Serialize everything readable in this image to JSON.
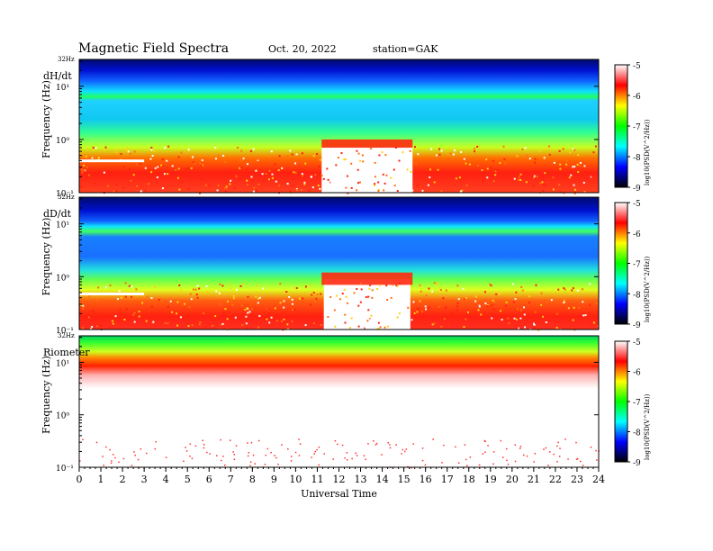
{
  "header": {
    "title": "Magnetic Field Spectra",
    "date": "Oct. 20, 2022",
    "station": "station=GAK"
  },
  "chart_data": [
    {
      "type": "heatmap",
      "label": "dH/dt",
      "ylabel": "Frequency (Hz)",
      "top_tick": "32Hz",
      "yticks": [
        "10¹",
        "10⁰",
        "10⁻¹"
      ],
      "ylim": [
        0.1,
        32
      ],
      "yscale": "log",
      "xlim": [
        0,
        24
      ],
      "colorbar": {
        "label": "log10(PSD(V^2/Hz))",
        "ticks": [
          "-5",
          "-6",
          "-7",
          "-8",
          "-9"
        ],
        "range": [
          -9,
          -5
        ]
      }
    },
    {
      "type": "heatmap",
      "label": "dD/dt",
      "ylabel": "Frequency (Hz)",
      "top_tick": "32Hz",
      "yticks": [
        "10¹",
        "10⁰",
        "10⁻¹"
      ],
      "ylim": [
        0.1,
        32
      ],
      "yscale": "log",
      "xlim": [
        0,
        24
      ],
      "colorbar": {
        "label": "log10(PSD(V^2/Hz))",
        "ticks": [
          "-5",
          "-6",
          "-7",
          "-8",
          "-9"
        ],
        "range": [
          -9,
          -5
        ]
      }
    },
    {
      "type": "heatmap",
      "label": "Riometer",
      "ylabel": "Frequency (Hz)",
      "top_tick": "32Hz",
      "yticks": [
        "10¹",
        "10⁰",
        "10⁻¹"
      ],
      "ylim": [
        0.1,
        32
      ],
      "yscale": "log",
      "xlim": [
        0,
        24
      ],
      "colorbar": {
        "label": "log10(PSD(V^2/Hz))",
        "ticks": [
          "-5",
          "-6",
          "-7",
          "-8",
          "-9"
        ],
        "range": [
          -9,
          -5
        ]
      }
    }
  ],
  "xaxis": {
    "label": "Universal Time",
    "ticks": [
      "0",
      "1",
      "2",
      "3",
      "4",
      "5",
      "6",
      "7",
      "8",
      "9",
      "10",
      "11",
      "12",
      "13",
      "14",
      "15",
      "16",
      "17",
      "18",
      "19",
      "20",
      "21",
      "22",
      "23",
      "24"
    ]
  },
  "colors": {
    "colormap": [
      "#000000",
      "#0000ff",
      "#00ffff",
      "#00ff00",
      "#ffff00",
      "#ff0000",
      "#ffffff"
    ]
  }
}
